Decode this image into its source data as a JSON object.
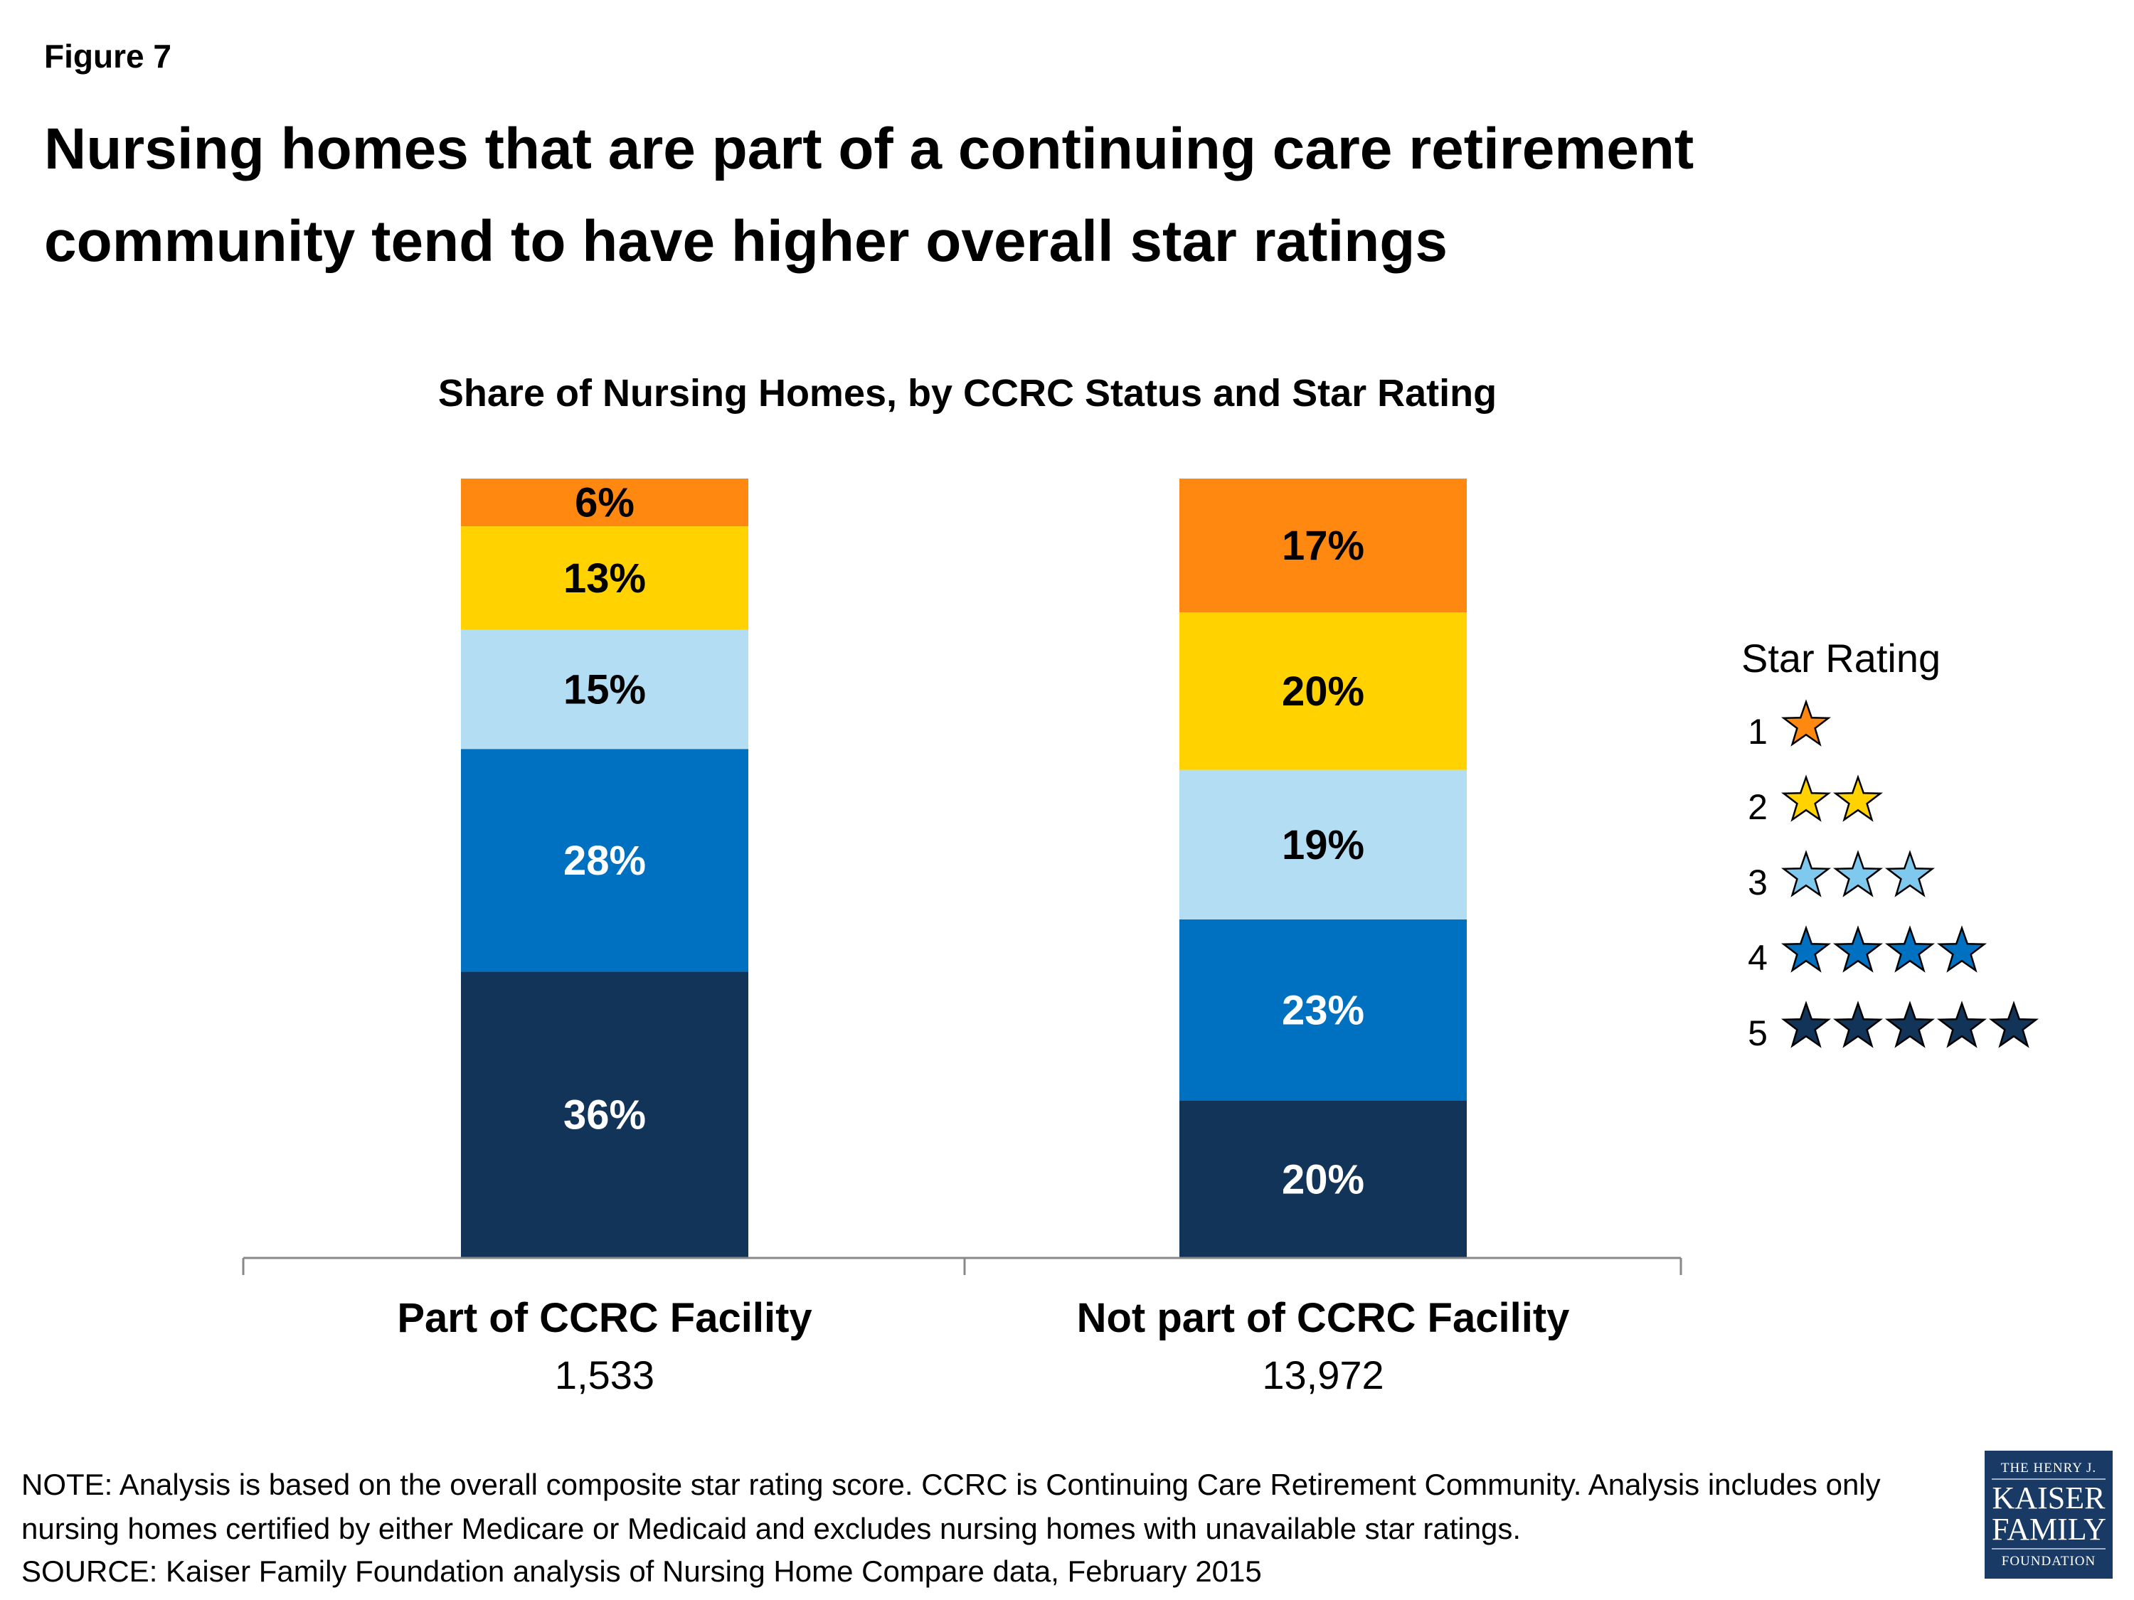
{
  "figure_label": "Figure 7",
  "title_lines": [
    "Nursing homes that are part of a continuing care retirement",
    "community tend to have higher overall star ratings"
  ],
  "chart_data": {
    "type": "bar",
    "stacked": true,
    "title": "Share of Nursing Homes, by CCRC Status and Star Rating",
    "categories": [
      {
        "name": "Part of CCRC Facility",
        "count": "1,533"
      },
      {
        "name": "Not part of CCRC Facility",
        "count": "13,972"
      }
    ],
    "legend_title": "Star Rating",
    "legend_placement": "right",
    "series": [
      {
        "name": "5",
        "stars": 5,
        "color": "#133459",
        "bar_color": "#133459",
        "label_color": "#ffffff",
        "values": [
          36,
          20
        ]
      },
      {
        "name": "4",
        "stars": 4,
        "color": "#0070C0",
        "bar_color": "#0070C0",
        "label_color": "#ffffff",
        "values": [
          28,
          23
        ]
      },
      {
        "name": "3",
        "stars": 3,
        "color": "#7FC8EE",
        "bar_color": "#B3DDF3",
        "label_color": "#000000",
        "values": [
          15,
          19
        ]
      },
      {
        "name": "2",
        "stars": 2,
        "color": "#FFD200",
        "bar_color": "#FFD200",
        "label_color": "#000000",
        "values": [
          13,
          20
        ]
      },
      {
        "name": "1",
        "stars": 1,
        "color": "#FF8811",
        "bar_color": "#FF8811",
        "label_color": "#000000",
        "values": [
          6,
          17
        ]
      }
    ],
    "value_suffix": "%",
    "grid": false
  },
  "notes": [
    "NOTE: Analysis is based on the overall composite star rating score. CCRC is Continuing Care Retirement Community. Analysis includes only",
    "nursing homes certified by either Medicare or Medicaid and excludes nursing homes with unavailable star ratings.",
    "SOURCE: Kaiser Family Foundation analysis of Nursing Home Compare data, February 2015"
  ],
  "logo": {
    "lines": [
      "THE HENRY J.",
      "KAISER",
      "FAMILY",
      "FOUNDATION"
    ],
    "color": "#1a3a66"
  }
}
